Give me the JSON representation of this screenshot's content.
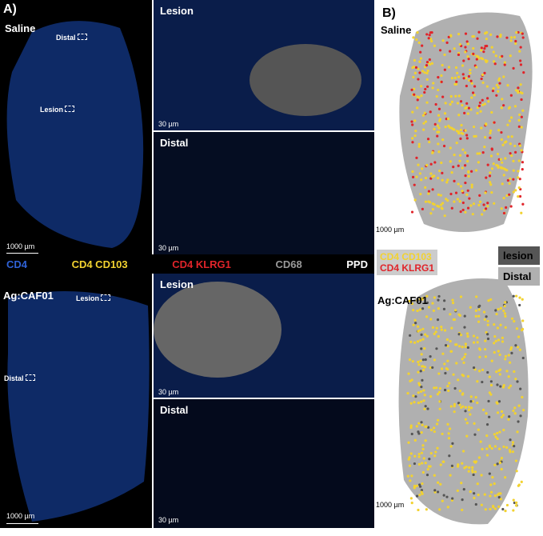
{
  "panel_a": {
    "label": "A)",
    "top": {
      "group": "Saline",
      "markers": [
        "Distal",
        "Lesion"
      ],
      "scale": "1000 µm",
      "insets": [
        {
          "title": "Lesion",
          "scale": "30 µm"
        },
        {
          "title": "Distal",
          "scale": "30 µm"
        }
      ]
    },
    "legend": [
      {
        "label": "CD4",
        "color": "#2f62d6"
      },
      {
        "label": "CD4 CD103",
        "color": "#f2d230"
      },
      {
        "label": "CD4 KLRG1",
        "color": "#e0242a"
      },
      {
        "label": "CD68",
        "color": "#9a9a9a"
      },
      {
        "label": "PPD",
        "color": "#ffffff"
      }
    ],
    "bottom": {
      "group": "Ag:CAF01",
      "markers": [
        "Lesion",
        "Distal"
      ],
      "scale": "1000 µm",
      "insets": [
        {
          "title": "Lesion",
          "scale": "30 µm"
        },
        {
          "title": "Distal",
          "scale": "30 µm"
        }
      ]
    }
  },
  "panel_b": {
    "label": "B)",
    "top": {
      "group": "Saline",
      "scale": "1000 µm"
    },
    "legend": [
      {
        "label": "CD4 CD103",
        "color": "#f2d230"
      },
      {
        "label": "CD4 KLRG1",
        "color": "#e0242a"
      }
    ],
    "regions": [
      {
        "label": "lesion",
        "color": "#555555"
      },
      {
        "label": "Distal",
        "color": "#b0b0b0"
      }
    ],
    "bottom": {
      "group": "Ag:CAF01",
      "scale": "1000 µm"
    }
  }
}
